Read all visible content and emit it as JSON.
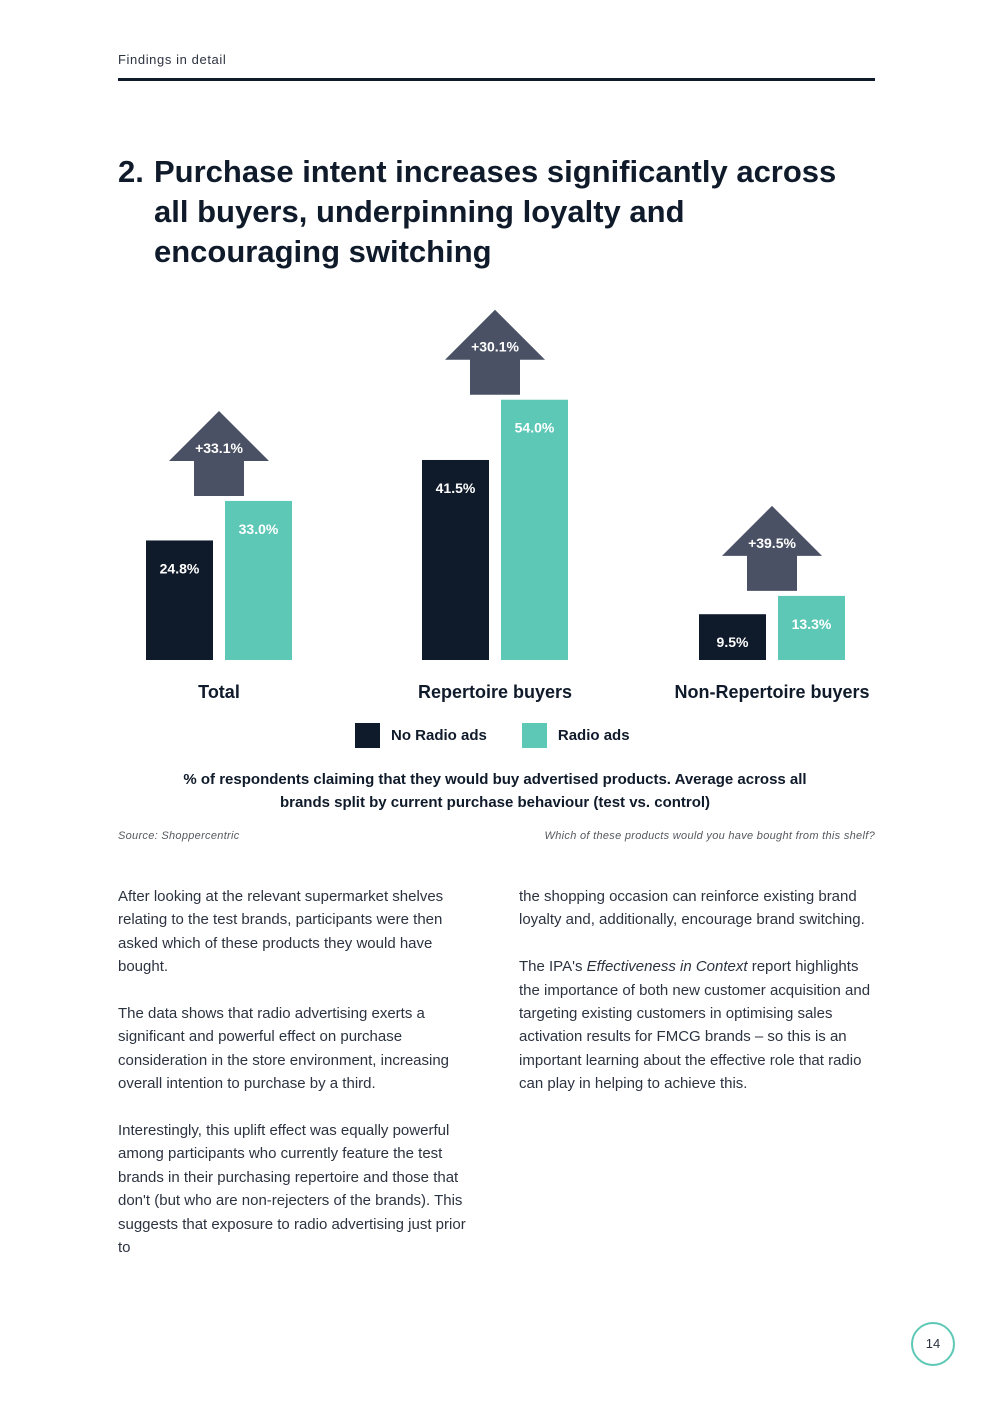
{
  "header": {
    "section": "Findings in detail"
  },
  "heading": {
    "number": "2.",
    "title": "Purchase intent increases significantly across all buyers, underpinning loyalty and encouraging switching"
  },
  "chart_data": {
    "type": "bar",
    "categories": [
      "Total",
      "Repertoire buyers",
      "Non-Repertoire buyers"
    ],
    "series": [
      {
        "name": "No Radio ads",
        "values": [
          24.8,
          41.5,
          9.5
        ],
        "labels": [
          "24.8%",
          "41.5%",
          "9.5%"
        ],
        "color": "#0f1a2a"
      },
      {
        "name": "Radio ads",
        "values": [
          33.0,
          54.0,
          13.3
        ],
        "labels": [
          "33.0%",
          "54.0%",
          "13.3%"
        ],
        "color": "#5ec8b7"
      }
    ],
    "uplift": [
      "+33.1%",
      "+30.1%",
      "+39.5%"
    ],
    "arrow_color": "#4a5164",
    "ylim": [
      0,
      60
    ],
    "caption": "% of respondents claiming that they would buy advertised products. Average across all brands split by current purchase behaviour (test vs. control)"
  },
  "source": "Source: Shoppercentric",
  "question": "Which of these products would you have bought from this shelf?",
  "body_left": [
    "After looking at the relevant supermarket shelves relating to the test brands, participants were then asked which of these products they would have bought.",
    "The data shows that radio advertising exerts a significant and powerful effect on purchase consideration in the store environment, increasing overall intention to purchase by a third.",
    "Interestingly, this uplift effect was equally powerful among participants who currently feature the test brands in their purchasing repertoire and those that don't (but who are non-rejecters of the brands). This suggests that exposure to radio advertising just prior to"
  ],
  "body_right": {
    "p1": "the shopping occasion can reinforce existing brand loyalty and, additionally, encourage brand switching.",
    "p2_before": "The IPA's ",
    "p2_italic": "Effectiveness in Context",
    "p2_after": " report highlights the importance of both new customer acquisition and targeting existing customers in optimising sales activation results for FMCG brands – so this is an important learning about the effective role that radio can play in helping to achieve this."
  },
  "page_number": "14"
}
